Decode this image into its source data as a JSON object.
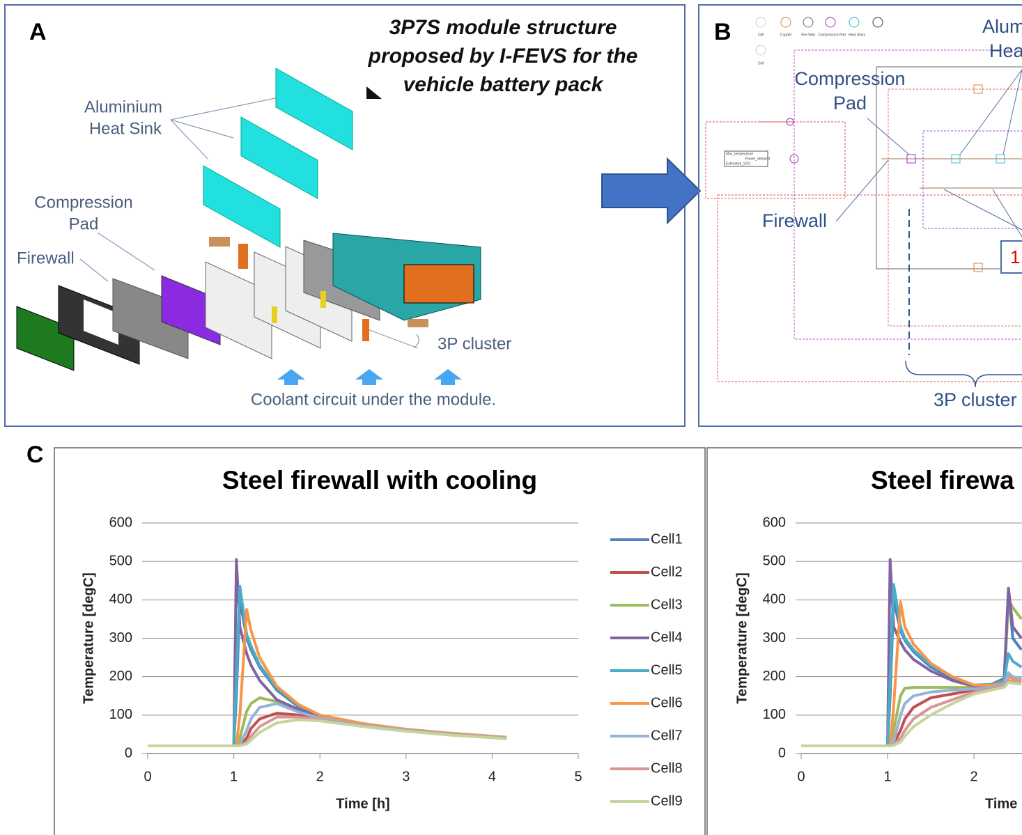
{
  "panel_a": {
    "label": "A",
    "title": [
      "3P7S module structure",
      "proposed by I-FEVS for the",
      "vehicle battery pack"
    ],
    "heat_sink": [
      "Aluminium",
      "Heat Sink"
    ],
    "compression_pad": [
      "Compression",
      "Pad"
    ],
    "firewall": "Firewall",
    "cluster": "3P cluster",
    "coolant": "Coolant circuit under the module."
  },
  "panel_b": {
    "label": "B",
    "heat_sink": [
      "Alum",
      "Hea"
    ],
    "compression_pad": [
      "Compression",
      "Pad"
    ],
    "firewall": "Firewall",
    "marker": "1",
    "cluster": "3P cluster",
    "legend": [
      "Cell",
      "Copper",
      "Fire Wall",
      "Compression Pad",
      "Heat Sinks",
      "Cell"
    ],
    "signals": [
      "Max_temperature",
      "Power_demand",
      "Estimated_SOC"
    ]
  },
  "panel_c": {
    "label": "C"
  },
  "chart_data": [
    {
      "type": "line",
      "title": "Steel firewall with cooling",
      "x_label": "Time [h]",
      "y_label": "Temperature [degC]",
      "x": [
        0,
        1,
        1.03,
        1.07,
        1.15,
        1.2,
        1.3,
        1.5,
        1.75,
        2,
        2.5,
        3,
        3.5,
        4,
        4.17
      ],
      "xlim": [
        0,
        5
      ],
      "xticks": [
        0,
        1,
        2,
        3,
        4,
        5
      ],
      "ylim": [
        0,
        600
      ],
      "yticks": [
        0,
        100,
        200,
        300,
        400,
        500,
        600
      ],
      "grid": true,
      "legend": "right",
      "series": [
        {
          "name": "Cell1",
          "color": "#4F81BD",
          "values": [
            20,
            20,
            150,
            400,
            300,
            270,
            225,
            165,
            122,
            98,
            77,
            63,
            53,
            45,
            42
          ]
        },
        {
          "name": "Cell2",
          "color": "#C0504D",
          "values": [
            20,
            20,
            20,
            22,
            40,
            65,
            90,
            105,
            100,
            90,
            73,
            60,
            50,
            43,
            40
          ]
        },
        {
          "name": "Cell3",
          "color": "#9BBB59",
          "values": [
            20,
            20,
            20,
            40,
            110,
            130,
            145,
            135,
            110,
            95,
            75,
            62,
            52,
            44,
            41
          ]
        },
        {
          "name": "Cell4",
          "color": "#8064A2",
          "values": [
            20,
            20,
            505,
            330,
            260,
            230,
            190,
            140,
            115,
            95,
            75,
            62,
            52,
            44,
            42
          ]
        },
        {
          "name": "Cell5",
          "color": "#4BACC6",
          "values": [
            20,
            20,
            200,
            435,
            310,
            280,
            230,
            170,
            125,
            100,
            78,
            63,
            53,
            45,
            42
          ]
        },
        {
          "name": "Cell6",
          "color": "#F79646",
          "values": [
            20,
            20,
            20,
            100,
            375,
            320,
            250,
            175,
            128,
            100,
            78,
            63,
            53,
            45,
            42
          ]
        },
        {
          "name": "Cell7",
          "color": "#95B3D7",
          "values": [
            20,
            20,
            20,
            25,
            60,
            90,
            120,
            130,
            108,
            92,
            74,
            61,
            51,
            43,
            40
          ]
        },
        {
          "name": "Cell8",
          "color": "#D99694",
          "values": [
            20,
            20,
            20,
            21,
            30,
            45,
            70,
            95,
            95,
            88,
            72,
            59,
            50,
            42,
            39
          ]
        },
        {
          "name": "Cell9",
          "color": "#C3D69B",
          "values": [
            20,
            20,
            20,
            20,
            25,
            35,
            55,
            80,
            88,
            85,
            70,
            58,
            48,
            41,
            38
          ]
        }
      ]
    },
    {
      "type": "line",
      "title": "Steel firewa",
      "x_label": "Time",
      "y_label": "Temperature [degC]",
      "x": [
        0,
        1,
        1.03,
        1.07,
        1.15,
        1.2,
        1.3,
        1.5,
        1.75,
        2,
        2.2,
        2.35,
        2.4,
        2.45,
        2.55
      ],
      "xlim": [
        0,
        5
      ],
      "xticks": [
        0,
        1,
        2
      ],
      "ylim": [
        0,
        600
      ],
      "yticks": [
        0,
        100,
        200,
        300,
        400,
        500,
        600
      ],
      "grid": true,
      "series": [
        {
          "color": "#4F81BD",
          "values": [
            20,
            20,
            150,
            400,
            320,
            295,
            265,
            225,
            195,
            176,
            180,
            192,
            430,
            300,
            270
          ]
        },
        {
          "color": "#C0504D",
          "values": [
            20,
            20,
            20,
            25,
            60,
            90,
            120,
            145,
            155,
            165,
            170,
            178,
            200,
            195,
            190
          ]
        },
        {
          "color": "#9BBB59",
          "values": [
            20,
            20,
            20,
            60,
            150,
            170,
            172,
            172,
            172,
            172,
            175,
            185,
            400,
            380,
            350
          ]
        },
        {
          "color": "#8064A2",
          "values": [
            20,
            20,
            505,
            330,
            290,
            270,
            245,
            215,
            190,
            175,
            180,
            195,
            430,
            330,
            300
          ]
        },
        {
          "color": "#4BACC6",
          "values": [
            20,
            20,
            200,
            440,
            330,
            300,
            270,
            230,
            200,
            178,
            180,
            190,
            260,
            240,
            225
          ]
        },
        {
          "color": "#F79646",
          "values": [
            20,
            20,
            20,
            120,
            395,
            330,
            285,
            235,
            200,
            178,
            178,
            182,
            200,
            195,
            190
          ]
        },
        {
          "color": "#95B3D7",
          "values": [
            20,
            20,
            20,
            30,
            100,
            130,
            150,
            160,
            165,
            168,
            172,
            180,
            210,
            200,
            195
          ]
        },
        {
          "color": "#D99694",
          "values": [
            20,
            20,
            20,
            22,
            40,
            60,
            90,
            120,
            140,
            160,
            168,
            175,
            190,
            188,
            185
          ]
        },
        {
          "color": "#C3D69B",
          "values": [
            20,
            20,
            20,
            21,
            30,
            45,
            70,
            100,
            130,
            155,
            165,
            172,
            185,
            183,
            180
          ]
        }
      ]
    }
  ]
}
